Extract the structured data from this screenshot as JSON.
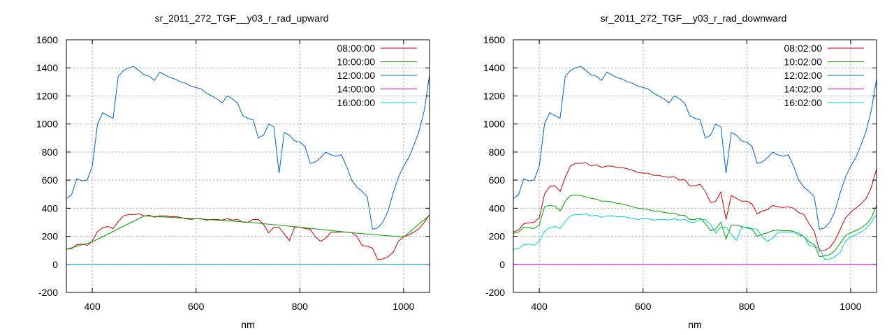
{
  "chart_data": [
    {
      "type": "line",
      "title": "sr_2011_272_TGF__y03_r_rad_upward",
      "xlabel": "nm",
      "ylabel": "",
      "xlim": [
        350,
        1050
      ],
      "ylim": [
        -200,
        1600
      ],
      "xticks": [
        400,
        600,
        800,
        1000
      ],
      "yticks": [
        -200,
        0,
        200,
        400,
        600,
        800,
        1000,
        1200,
        1400,
        1600
      ],
      "grid": true,
      "legend": "top-right",
      "series": [
        {
          "name": "08:00:00",
          "color": "#c00000",
          "x": [
            350,
            360,
            370,
            380,
            390,
            400,
            410,
            420,
            430,
            440,
            450,
            460,
            470,
            480,
            490,
            500,
            510,
            520,
            530,
            540,
            550,
            560,
            570,
            580,
            590,
            600,
            610,
            620,
            630,
            640,
            650,
            660,
            670,
            680,
            690,
            700,
            710,
            720,
            730,
            740,
            750,
            760,
            770,
            780,
            790,
            800,
            810,
            820,
            830,
            840,
            850,
            860,
            870,
            880,
            890,
            900,
            910,
            920,
            930,
            940,
            950,
            960,
            970,
            980,
            990,
            1000,
            1010,
            1020,
            1030,
            1040,
            1050
          ],
          "y": [
            108,
            112,
            140,
            145,
            135,
            165,
            235,
            260,
            270,
            255,
            305,
            345,
            355,
            355,
            360,
            345,
            350,
            335,
            345,
            345,
            340,
            340,
            335,
            325,
            320,
            325,
            325,
            315,
            320,
            320,
            315,
            325,
            315,
            320,
            300,
            300,
            320,
            320,
            285,
            225,
            265,
            265,
            215,
            170,
            265,
            265,
            255,
            250,
            195,
            165,
            185,
            230,
            230,
            230,
            230,
            225,
            200,
            135,
            130,
            115,
            35,
            38,
            55,
            85,
            165,
            195,
            210,
            230,
            255,
            300,
            355
          ]
        },
        {
          "name": "10:00:00",
          "color": "#009900",
          "x": [
            350,
            400,
            500,
            600,
            700,
            800,
            900,
            1000,
            1050
          ],
          "y": [
            108,
            160,
            345,
            325,
            300,
            265,
            225,
            195,
            350
          ]
        },
        {
          "name": "12:00:00",
          "color": "#0060c0",
          "x": [
            350,
            360,
            370,
            380,
            390,
            400,
            410,
            420,
            430,
            440,
            450,
            460,
            470,
            480,
            490,
            500,
            510,
            520,
            530,
            540,
            550,
            560,
            570,
            580,
            590,
            600,
            610,
            620,
            630,
            640,
            650,
            660,
            670,
            680,
            690,
            700,
            710,
            720,
            730,
            740,
            750,
            760,
            770,
            780,
            790,
            800,
            810,
            820,
            830,
            840,
            850,
            860,
            870,
            880,
            890,
            900,
            910,
            920,
            930,
            940,
            950,
            960,
            970,
            980,
            990,
            1000,
            1010,
            1020,
            1030,
            1040,
            1050
          ],
          "y": [
            470,
            495,
            610,
            595,
            600,
            700,
            1000,
            1080,
            1060,
            1040,
            1340,
            1380,
            1400,
            1410,
            1380,
            1350,
            1340,
            1310,
            1370,
            1350,
            1330,
            1320,
            1300,
            1290,
            1270,
            1260,
            1250,
            1220,
            1200,
            1180,
            1150,
            1200,
            1180,
            1150,
            1060,
            1040,
            1030,
            900,
            920,
            1000,
            980,
            650,
            940,
            920,
            880,
            870,
            840,
            720,
            730,
            760,
            800,
            780,
            770,
            780,
            700,
            600,
            550,
            520,
            480,
            250,
            260,
            300,
            380,
            510,
            620,
            700,
            760,
            850,
            950,
            1100,
            1350
          ]
        },
        {
          "name": "14:00:00",
          "color": "#cc00cc",
          "x": [
            350,
            1050
          ],
          "y": [
            0,
            0
          ]
        },
        {
          "name": "16:00:00",
          "color": "#00cccc",
          "x": [
            350,
            1050
          ],
          "y": [
            0,
            0
          ]
        }
      ]
    },
    {
      "type": "line",
      "title": "sr_2011_272_TGF__y03_r_rad_downward",
      "xlabel": "nm",
      "ylabel": "",
      "xlim": [
        350,
        1050
      ],
      "ylim": [
        -200,
        1600
      ],
      "xticks": [
        400,
        600,
        800,
        1000
      ],
      "yticks": [
        -200,
        0,
        200,
        400,
        600,
        800,
        1000,
        1200,
        1400,
        1600
      ],
      "grid": true,
      "legend": "top-right",
      "series": [
        {
          "name": "08:02:00",
          "color": "#c00000",
          "x": [
            350,
            360,
            370,
            380,
            390,
            400,
            410,
            420,
            430,
            440,
            450,
            460,
            470,
            480,
            490,
            500,
            510,
            520,
            530,
            540,
            550,
            560,
            570,
            580,
            590,
            600,
            610,
            620,
            630,
            640,
            650,
            660,
            670,
            680,
            690,
            700,
            710,
            720,
            730,
            740,
            750,
            760,
            770,
            780,
            790,
            800,
            810,
            820,
            830,
            840,
            850,
            860,
            870,
            880,
            890,
            900,
            910,
            920,
            930,
            940,
            950,
            960,
            970,
            980,
            990,
            1000,
            1010,
            1020,
            1030,
            1040,
            1050
          ],
          "y": [
            230,
            245,
            290,
            295,
            300,
            330,
            500,
            555,
            560,
            520,
            620,
            700,
            720,
            720,
            725,
            700,
            710,
            690,
            700,
            700,
            690,
            690,
            680,
            670,
            655,
            650,
            650,
            635,
            635,
            625,
            620,
            625,
            600,
            605,
            560,
            560,
            570,
            520,
            440,
            450,
            515,
            320,
            490,
            470,
            450,
            450,
            430,
            360,
            380,
            390,
            420,
            410,
            405,
            410,
            400,
            370,
            355,
            290,
            235,
            95,
            100,
            120,
            170,
            250,
            330,
            370,
            400,
            430,
            470,
            550,
            680
          ]
        },
        {
          "name": "10:02:00",
          "color": "#009900",
          "x": [
            350,
            360,
            370,
            380,
            390,
            400,
            410,
            420,
            430,
            440,
            450,
            460,
            470,
            480,
            490,
            500,
            510,
            520,
            530,
            540,
            550,
            560,
            570,
            580,
            590,
            600,
            610,
            620,
            630,
            640,
            650,
            660,
            670,
            680,
            690,
            700,
            710,
            720,
            730,
            740,
            750,
            760,
            770,
            780,
            790,
            800,
            810,
            820,
            830,
            840,
            850,
            860,
            870,
            880,
            890,
            900,
            910,
            920,
            930,
            940,
            950,
            960,
            970,
            980,
            990,
            1000,
            1010,
            1020,
            1030,
            1040,
            1050
          ],
          "y": [
            220,
            230,
            265,
            260,
            255,
            280,
            410,
            420,
            415,
            380,
            450,
            490,
            495,
            490,
            480,
            470,
            465,
            450,
            450,
            445,
            435,
            430,
            420,
            410,
            400,
            395,
            390,
            380,
            380,
            370,
            365,
            365,
            350,
            350,
            320,
            320,
            330,
            290,
            240,
            250,
            300,
            180,
            280,
            280,
            270,
            260,
            250,
            200,
            215,
            225,
            240,
            245,
            240,
            240,
            235,
            210,
            200,
            160,
            140,
            55,
            60,
            70,
            100,
            150,
            205,
            225,
            240,
            260,
            285,
            330,
            420
          ]
        },
        {
          "name": "12:02:00",
          "color": "#0060c0",
          "x": [
            350,
            360,
            370,
            380,
            390,
            400,
            410,
            420,
            430,
            440,
            450,
            460,
            470,
            480,
            490,
            500,
            510,
            520,
            530,
            540,
            550,
            560,
            570,
            580,
            590,
            600,
            610,
            620,
            630,
            640,
            650,
            660,
            670,
            680,
            690,
            700,
            710,
            720,
            730,
            740,
            750,
            760,
            770,
            780,
            790,
            800,
            810,
            820,
            830,
            840,
            850,
            860,
            870,
            880,
            890,
            900,
            910,
            920,
            930,
            940,
            950,
            960,
            970,
            980,
            990,
            1000,
            1010,
            1020,
            1030,
            1040,
            1050
          ],
          "y": [
            470,
            495,
            610,
            595,
            600,
            700,
            1000,
            1080,
            1060,
            1040,
            1340,
            1380,
            1400,
            1410,
            1380,
            1350,
            1340,
            1310,
            1370,
            1350,
            1330,
            1320,
            1300,
            1290,
            1270,
            1260,
            1250,
            1220,
            1200,
            1180,
            1150,
            1200,
            1180,
            1150,
            1060,
            1040,
            1030,
            900,
            920,
            1000,
            980,
            650,
            940,
            920,
            880,
            870,
            840,
            720,
            730,
            760,
            800,
            780,
            770,
            780,
            700,
            600,
            550,
            520,
            480,
            250,
            260,
            300,
            380,
            510,
            620,
            700,
            760,
            850,
            950,
            1100,
            1320
          ]
        },
        {
          "name": "14:02:00",
          "color": "#cc00cc",
          "x": [
            350,
            1050
          ],
          "y": [
            0,
            0
          ]
        },
        {
          "name": "16:02:00",
          "color": "#00cccc",
          "x": [
            350,
            360,
            370,
            380,
            390,
            400,
            410,
            420,
            430,
            440,
            450,
            460,
            470,
            480,
            490,
            500,
            510,
            520,
            530,
            540,
            550,
            560,
            570,
            580,
            590,
            600,
            610,
            620,
            630,
            640,
            650,
            660,
            670,
            680,
            690,
            700,
            710,
            720,
            730,
            740,
            750,
            760,
            770,
            780,
            790,
            800,
            810,
            820,
            830,
            840,
            850,
            860,
            870,
            880,
            890,
            900,
            910,
            920,
            930,
            940,
            950,
            960,
            970,
            980,
            990,
            1000,
            1010,
            1020,
            1030,
            1040,
            1050
          ],
          "y": [
            108,
            112,
            140,
            145,
            135,
            165,
            235,
            260,
            270,
            255,
            305,
            345,
            355,
            355,
            360,
            345,
            350,
            335,
            345,
            345,
            340,
            340,
            335,
            325,
            320,
            325,
            325,
            315,
            320,
            320,
            315,
            325,
            315,
            320,
            300,
            300,
            320,
            320,
            285,
            225,
            265,
            265,
            215,
            170,
            265,
            265,
            255,
            250,
            195,
            165,
            185,
            230,
            230,
            230,
            230,
            225,
            200,
            135,
            130,
            115,
            35,
            38,
            55,
            85,
            165,
            195,
            210,
            230,
            255,
            300,
            355
          ]
        }
      ]
    }
  ]
}
